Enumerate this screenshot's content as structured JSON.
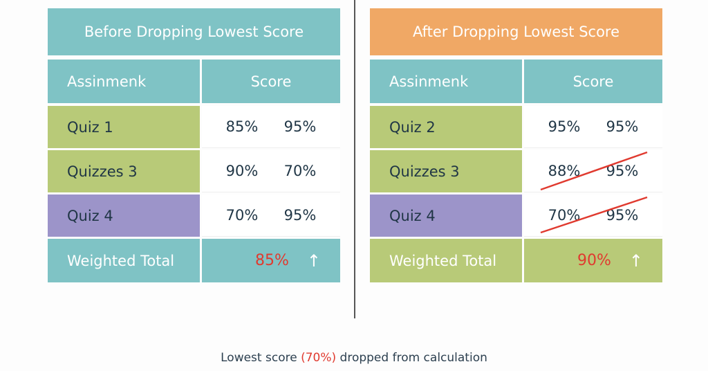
{
  "colors": {
    "teal": "#7fc3c5",
    "orange": "#f0a865",
    "green": "#b8ca78",
    "purple": "#9c94c9",
    "red": "#e03a2f"
  },
  "before": {
    "title": "Before Dropping Lowest Score",
    "header": {
      "col1": "Assinmenk",
      "col2": "Score"
    },
    "rows": [
      {
        "label": "Quiz 1",
        "s1": "85%",
        "s2": "95%"
      },
      {
        "label": "Quizzes 3",
        "s1": "90%",
        "s2": "70%"
      },
      {
        "label": "Quiz 4",
        "s1": "70%",
        "s2": "95%"
      }
    ],
    "total": {
      "label": "Weighted Total",
      "value": "85%",
      "arrow": "↑"
    }
  },
  "after": {
    "title": "After Dropping Lowest Score",
    "header": {
      "col1": "Assinmenk",
      "col2": "Score"
    },
    "rows": [
      {
        "label": "Quiz 2",
        "s1": "95%",
        "s2": "95%",
        "struck": false
      },
      {
        "label": "Quizzes 3",
        "s1": "88%",
        "s2": "95%",
        "struck": true
      },
      {
        "label": "Quiz 4",
        "s1": "70%",
        "s2": "95%",
        "struck": true
      }
    ],
    "total": {
      "label": "Weighted Total",
      "value": "90%",
      "arrow": "↑"
    }
  },
  "footer": {
    "pre": "Lowest score ",
    "highlight": "(70%)",
    "post": " dropped from calculation"
  }
}
